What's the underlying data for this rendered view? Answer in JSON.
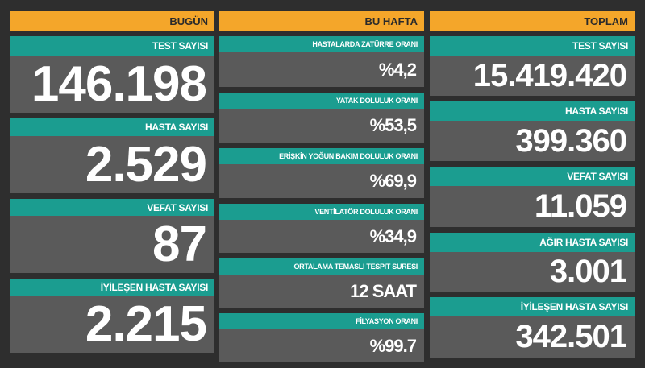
{
  "columns": [
    {
      "title": "BUGÜN",
      "cards": [
        {
          "label": "TEST SAYISI",
          "value": "146.198"
        },
        {
          "label": "HASTA SAYISI",
          "value": "2.529"
        },
        {
          "label": "VEFAT SAYISI",
          "value": "87"
        },
        {
          "label": "İYİLEŞEN HASTA SAYISI",
          "value": "2.215"
        }
      ]
    },
    {
      "title": "BU HAFTA",
      "cards": [
        {
          "label": "HASTALARDA ZATÜRRE ORANI",
          "value": "%4,2"
        },
        {
          "label": "YATAK DOLULUK ORANI",
          "value": "%53,5"
        },
        {
          "label": "ERİŞKİN YOĞUN BAKIM DOLULUK ORANI",
          "value": "%69,9"
        },
        {
          "label": "VENTİLATÖR DOLULUK ORANI",
          "value": "%34,9"
        },
        {
          "label": "ORTALAMA TEMASLI TESPİT SÜRESİ",
          "value": "12 SAAT"
        },
        {
          "label": "FİLYASYON ORANI",
          "value": "%99.7"
        }
      ]
    },
    {
      "title": "TOPLAM",
      "cards": [
        {
          "label": "TEST SAYISI",
          "value": "15.419.420"
        },
        {
          "label": "HASTA SAYISI",
          "value": "399.360"
        },
        {
          "label": "VEFAT SAYISI",
          "value": "11.059"
        },
        {
          "label": "AĞIR HASTA SAYISI",
          "value": "3.001"
        },
        {
          "label": "İYİLEŞEN HASTA SAYISI",
          "value": "342.501"
        }
      ]
    }
  ]
}
